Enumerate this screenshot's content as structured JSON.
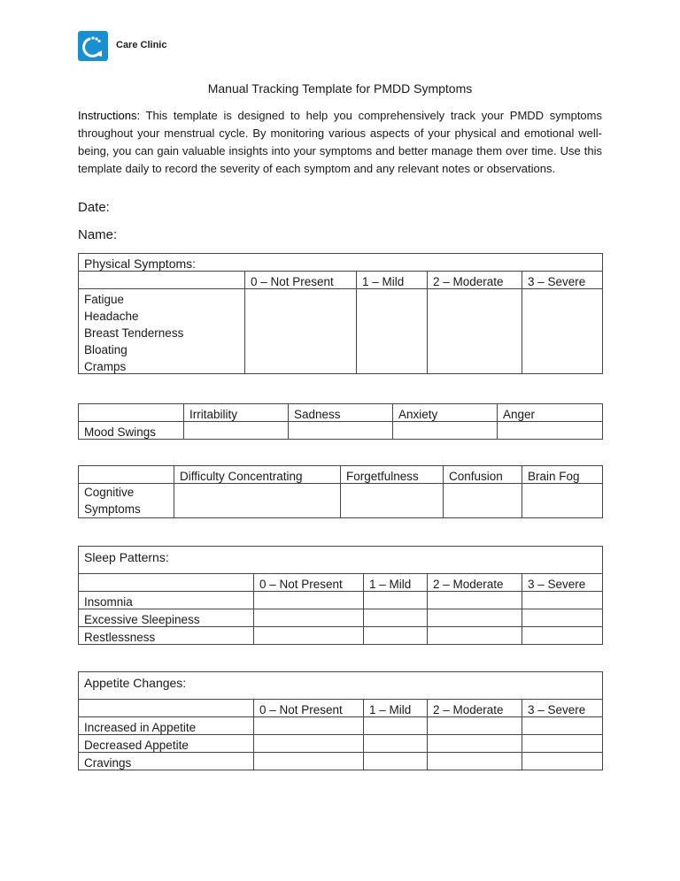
{
  "header": {
    "brand": "Care Clinic",
    "logo_color": "#1a8fd0",
    "logo_icon": "circular-arrow-icon"
  },
  "title": "Manual Tracking Template for PMDD Symptoms",
  "instructions": {
    "label": "Instructions:",
    "text": " This template is designed to help you comprehensively track your PMDD symptoms throughout your menstrual cycle. By monitoring various aspects of your physical and emotional well-being, you can gain valuable insights into your symptoms and better manage them over time. Use this template daily to record the severity of each symptom and any relevant notes or observations."
  },
  "fields": {
    "date": "Date:",
    "name": "Name:"
  },
  "scale": [
    "0 – Not Present",
    "1 – Mild",
    "2 – Moderate",
    "3 – Severe"
  ],
  "physical": {
    "title": "Physical Symptoms:",
    "rows": [
      "Fatigue",
      "Headache",
      "Breast Tenderness",
      "Bloating",
      "Cramps"
    ]
  },
  "mood": {
    "label": "Mood Swings",
    "columns": [
      "Irritability",
      "Sadness",
      "Anxiety",
      "Anger"
    ]
  },
  "cognitive": {
    "label": "Cognitive Symptoms",
    "columns": [
      "Difficulty Concentrating",
      "Forgetfulness",
      "Confusion",
      "Brain Fog"
    ]
  },
  "sleep": {
    "title": "Sleep Patterns:",
    "rows": [
      "Insomnia",
      "Excessive Sleepiness",
      "Restlessness"
    ]
  },
  "appetite": {
    "title": "Appetite Changes:",
    "rows": [
      "Increased in Appetite",
      "Decreased Appetite",
      "Cravings"
    ]
  }
}
